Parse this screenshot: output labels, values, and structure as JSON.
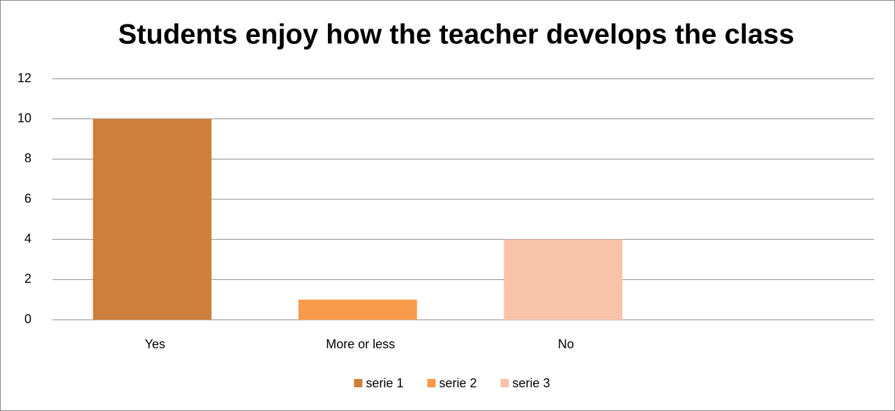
{
  "chart_data": {
    "type": "bar",
    "title": "Students enjoy how the teacher develops the class",
    "categories": [
      "Yes",
      "More or less",
      "No",
      null
    ],
    "series": [
      {
        "name": "serie 1",
        "color": "#cd7f3b",
        "values": [
          10,
          null,
          null,
          null
        ]
      },
      {
        "name": "serie 2",
        "color": "#f79a4a",
        "values": [
          null,
          1,
          null,
          null
        ]
      },
      {
        "name": "serie 3",
        "color": "#f9c3aa",
        "values": [
          null,
          null,
          4,
          null
        ]
      }
    ],
    "ylim": [
      0,
      12
    ],
    "yticks": [
      0,
      2,
      4,
      6,
      8,
      10,
      12
    ],
    "grid": true,
    "legend": "bottom"
  }
}
